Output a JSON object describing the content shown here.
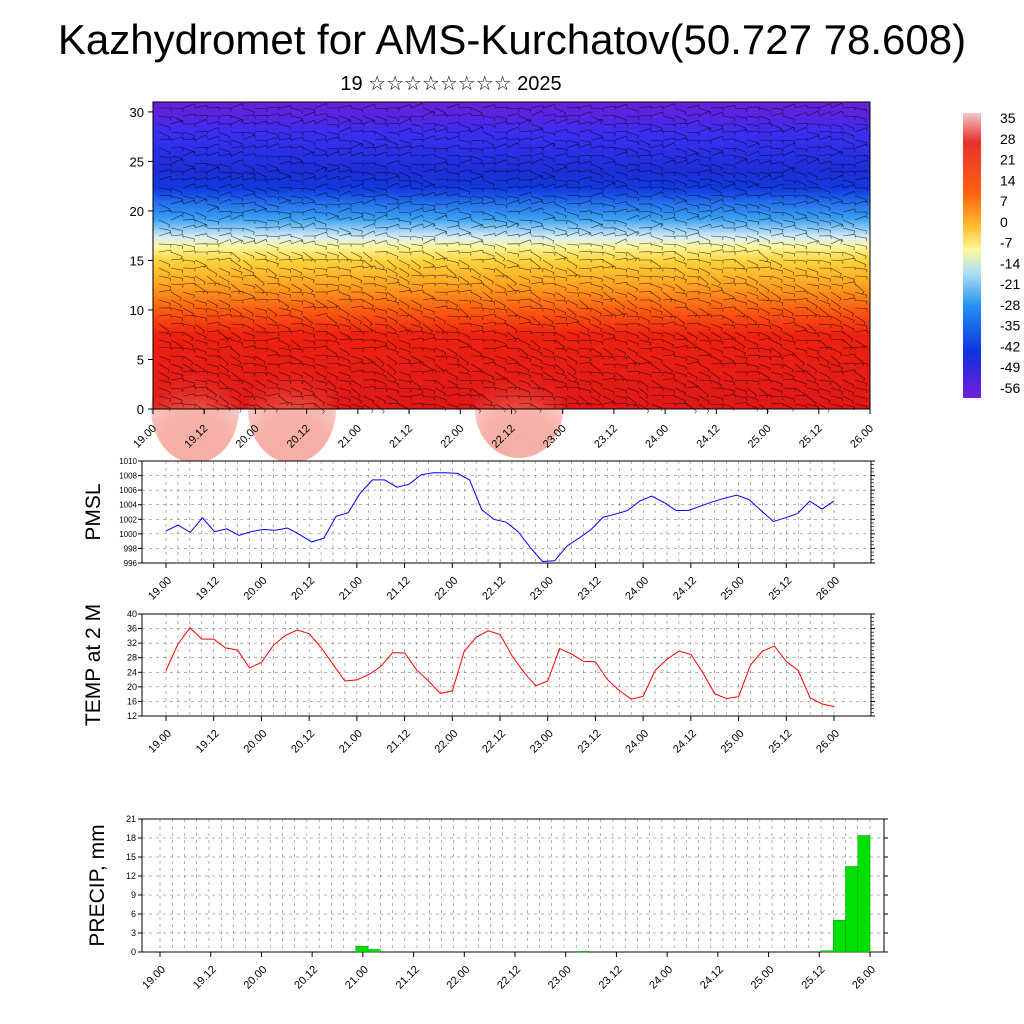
{
  "header": {
    "title": "Kazhydromet for AMS-Kurchatov(50.727 78.608)",
    "subtitle": "19 ☆☆☆☆☆☆☆☆ 2025"
  },
  "time_ticks": [
    "19.00",
    "19.12",
    "20.00",
    "20.12",
    "21.00",
    "21.12",
    "22.00",
    "22.12",
    "23.00",
    "23.12",
    "24.00",
    "24.12",
    "25.00",
    "25.12",
    "26.00"
  ],
  "colorbar": {
    "labels": [
      "35",
      "28",
      "21",
      "14",
      "7",
      "0",
      "-7",
      "-14",
      "-21",
      "-28",
      "-35",
      "-42",
      "-49",
      "-56"
    ]
  },
  "colors": {
    "pmsl_line": "#0000ff",
    "temp_line": "#ff0000",
    "precip_bar": "#00e000"
  },
  "chart_data": [
    {
      "type": "heatmap",
      "title": "",
      "xlabel": "",
      "ylabel": "",
      "x_ticks": [
        "19.00",
        "19.12",
        "20.00",
        "20.12",
        "21.00",
        "21.12",
        "22.00",
        "22.12",
        "23.00",
        "23.12",
        "24.00",
        "24.12",
        "25.00",
        "25.12",
        "26.00"
      ],
      "y_ticks": [
        0,
        5,
        10,
        15,
        20,
        25,
        30
      ],
      "ylim": [
        0,
        31
      ],
      "color_scale": "temperature",
      "color_range": [
        -56,
        35
      ],
      "notes": "vertical cross-section of temperature with wind barbs"
    },
    {
      "type": "line",
      "ylabel": "PMSL",
      "ylim": [
        996,
        1010
      ],
      "y_ticks": [
        996,
        998,
        1000,
        1002,
        1004,
        1006,
        1008,
        1010
      ],
      "x_ticks": [
        "19.00",
        "19.12",
        "20.00",
        "20.12",
        "21.00",
        "21.12",
        "22.00",
        "22.12",
        "23.00",
        "23.12",
        "24.00",
        "24.12",
        "25.00",
        "25.12",
        "26.00"
      ],
      "series": [
        {
          "values": [
            1000.4,
            1001.2,
            1000.2,
            1002.2,
            1000.3,
            1000.7,
            999.8,
            1000.3,
            1000.6,
            1000.5,
            1000.8,
            999.9,
            998.9,
            999.4,
            1002.4,
            1002.9,
            1005.6,
            1007.4,
            1007.4,
            1006.4,
            1006.8,
            1008.1,
            1008.4,
            1008.4,
            1008.3,
            1007.4,
            1003.3,
            1002.0,
            1001.6,
            1000.3,
            998.1,
            996.2,
            996.3,
            998.3,
            999.4,
            1000.6,
            1002.3,
            1002.7,
            1003.2,
            1004.5,
            1005.2,
            1004.3,
            1003.2,
            1003.2,
            1003.8,
            1004.4,
            1004.9,
            1005.3,
            1004.7,
            1003.2,
            1001.7,
            1002.2,
            1002.8,
            1004.5,
            1003.4,
            1004.5
          ]
        }
      ]
    },
    {
      "type": "line",
      "ylabel": "TEMP at 2 M",
      "ylim": [
        12,
        40
      ],
      "y_ticks": [
        12,
        16,
        20,
        24,
        28,
        32,
        36,
        40
      ],
      "x_ticks": [
        "19.00",
        "19.12",
        "20.00",
        "20.12",
        "21.00",
        "21.12",
        "22.00",
        "22.12",
        "23.00",
        "23.12",
        "24.00",
        "24.12",
        "25.00",
        "25.12",
        "26.00"
      ],
      "series": [
        {
          "values": [
            24.5,
            31.7,
            36.2,
            33.1,
            33.1,
            30.7,
            30.1,
            25.2,
            26.7,
            31.4,
            34.1,
            35.6,
            34.6,
            30.8,
            26.2,
            21.6,
            21.9,
            23.4,
            25.6,
            29.4,
            29.3,
            24.7,
            21.6,
            18.2,
            18.9,
            29.7,
            33.6,
            35.4,
            34.4,
            28.6,
            24.0,
            20.3,
            21.6,
            30.5,
            29.0,
            27.0,
            26.9,
            22.0,
            19.0,
            16.6,
            17.4,
            24.5,
            27.6,
            29.8,
            28.9,
            23.9,
            18.1,
            16.8,
            17.3,
            26.0,
            29.8,
            31.2,
            27.0,
            24.5,
            17.0,
            15.3,
            14.6
          ]
        }
      ]
    },
    {
      "type": "bar",
      "ylabel": "PRECIP, mm",
      "ylim": [
        0,
        21
      ],
      "y_ticks": [
        0,
        3,
        6,
        9,
        12,
        15,
        18,
        21
      ],
      "x_ticks": [
        "19.00",
        "19.12",
        "20.00",
        "20.12",
        "21.00",
        "21.12",
        "22.00",
        "22.12",
        "23.00",
        "23.12",
        "24.00",
        "24.12",
        "25.00",
        "25.12",
        "26.00"
      ],
      "series": [
        {
          "values": [
            0,
            0,
            0,
            0,
            0,
            0,
            0,
            0,
            0,
            0,
            0,
            0,
            0,
            0,
            0,
            0,
            0.9,
            0.4,
            0,
            0,
            0,
            0,
            0,
            0,
            0,
            0,
            0,
            0,
            0,
            0,
            0,
            0,
            0,
            0,
            0.1,
            0,
            0,
            0,
            0,
            0,
            0,
            0,
            0,
            0,
            0,
            0,
            0,
            0,
            0,
            0,
            0,
            0,
            0,
            0,
            0.2,
            5.0,
            13.5,
            18.4
          ]
        }
      ]
    }
  ]
}
